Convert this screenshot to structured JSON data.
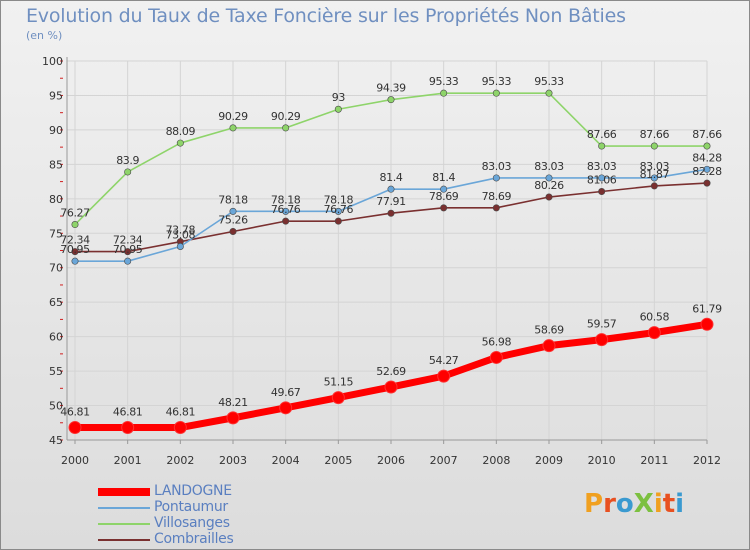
{
  "header": {
    "title": "Evolution du Taux de Taxe Foncière sur les Propriétés Non Bâties",
    "unit": "(en %)"
  },
  "logo": {
    "text": "ProXiti",
    "colors": [
      "#f0a020",
      "#e85020",
      "#3a9ad0",
      "#7cc040",
      "#f0a020",
      "#e85020",
      "#3a9ad0"
    ]
  },
  "chart_data": {
    "type": "line",
    "title": "Evolution du Taux de Taxe Foncière sur les Propriétés Non Bâties",
    "ylabel": "(en %)",
    "xlabel": "",
    "x": [
      "2000",
      "2001",
      "2002",
      "2003",
      "2004",
      "2005",
      "2006",
      "2007",
      "2008",
      "2009",
      "2010",
      "2011",
      "2012"
    ],
    "ylim": [
      45,
      100
    ],
    "yticks": [
      45,
      50,
      55,
      60,
      65,
      70,
      75,
      80,
      85,
      90,
      95,
      100
    ],
    "grid": true,
    "legend_position": "bottom-left",
    "series": [
      {
        "name": "LANDOGNE",
        "color": "#ff0000",
        "values": [
          46.81,
          46.81,
          46.81,
          48.21,
          49.67,
          51.15,
          52.69,
          54.27,
          56.98,
          58.69,
          59.57,
          60.58,
          61.79
        ],
        "labels": [
          "46.81",
          "46.81",
          "46.81",
          "48.21",
          "49.67",
          "51.15",
          "52.69",
          "54.27",
          "56.98",
          "58.69",
          "59.57",
          "60.58",
          "61.79"
        ]
      },
      {
        "name": "Pontaumur",
        "color": "#6aa6d8",
        "values": [
          70.95,
          70.95,
          73.08,
          78.18,
          78.18,
          78.18,
          81.4,
          81.4,
          83.03,
          83.03,
          83.03,
          83.03,
          84.28
        ],
        "labels": [
          "70.95",
          "70.95",
          "73.08",
          "78.18",
          "78.18",
          "78.18",
          "81.4",
          "81.4",
          "83.03",
          "83.03",
          "83.03",
          "83.03",
          "84.28"
        ]
      },
      {
        "name": "Villosanges",
        "color": "#8ed46a",
        "values": [
          76.27,
          83.9,
          88.09,
          90.29,
          90.29,
          93,
          94.39,
          95.33,
          95.33,
          95.33,
          87.66,
          87.66,
          87.66
        ],
        "labels": [
          "76.27",
          "83.9",
          "88.09",
          "90.29",
          "90.29",
          "93",
          "94.39",
          "95.33",
          "95.33",
          "95.33",
          "87.66",
          "87.66",
          "87.66"
        ]
      },
      {
        "name": "Combrailles",
        "color": "#7a3030",
        "values": [
          72.34,
          72.34,
          73.78,
          75.26,
          76.76,
          76.76,
          77.91,
          78.69,
          78.69,
          80.26,
          81.06,
          81.87,
          82.28
        ],
        "labels": [
          "72.34",
          "72.34",
          "73.78",
          "75.26",
          "76.76",
          "76.76",
          "77.91",
          "78.69",
          "78.69",
          "80.26",
          "81.06",
          "81.87",
          "82.28"
        ]
      }
    ]
  }
}
